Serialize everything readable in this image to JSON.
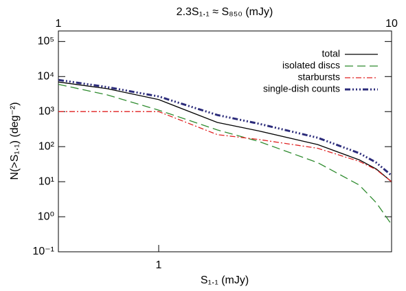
{
  "chart_data": {
    "type": "line",
    "title": "2.3S₁.₁ ≈ S₈₅₀ (mJy)",
    "xlabel": "S₁.₁ (mJy)",
    "ylabel": "N(>S₁.₁) (deg⁻²)",
    "xscale": "log",
    "yscale": "log",
    "xlim": [
      0.5,
      5
    ],
    "xticks": [
      1
    ],
    "x2lim": [
      1,
      10
    ],
    "x2ticks": [
      1,
      10
    ],
    "ylim": [
      0.1,
      200000
    ],
    "yticks": [
      {
        "value": 100000,
        "label": "10⁵"
      },
      {
        "value": 10000,
        "label": "10⁴"
      },
      {
        "value": 1000,
        "label": "10³"
      },
      {
        "value": 100,
        "label": "10²"
      },
      {
        "value": 10,
        "label": "10¹"
      },
      {
        "value": 1,
        "label": "10⁰"
      },
      {
        "value": 0.1,
        "label": "10⁻¹"
      }
    ],
    "legend": "upper right",
    "x": [
      0.5,
      0.7,
      1,
      1.5,
      2,
      3,
      4,
      4.5,
      5
    ],
    "series": [
      {
        "name": "total",
        "color": "#000000",
        "dash": "solid",
        "values": [
          7000,
          4500,
          2200,
          490,
          280,
          115,
          42,
          23,
          10
        ]
      },
      {
        "name": "isolated discs",
        "color": "#2e8b2e",
        "dash": "dashed",
        "values": [
          6000,
          3000,
          1100,
          300,
          140,
          35,
          8,
          2.5,
          0.6
        ]
      },
      {
        "name": "starbursts",
        "color": "#e02020",
        "dash": "dashdot",
        "values": [
          1000,
          1000,
          1000,
          220,
          160,
          90,
          38,
          22,
          10
        ]
      },
      {
        "name": "single-dish counts",
        "color": "#2b2b7a",
        "dash": "dashdotdotdot",
        "values": [
          8000,
          5000,
          2700,
          800,
          450,
          180,
          65,
          35,
          15
        ]
      }
    ]
  }
}
